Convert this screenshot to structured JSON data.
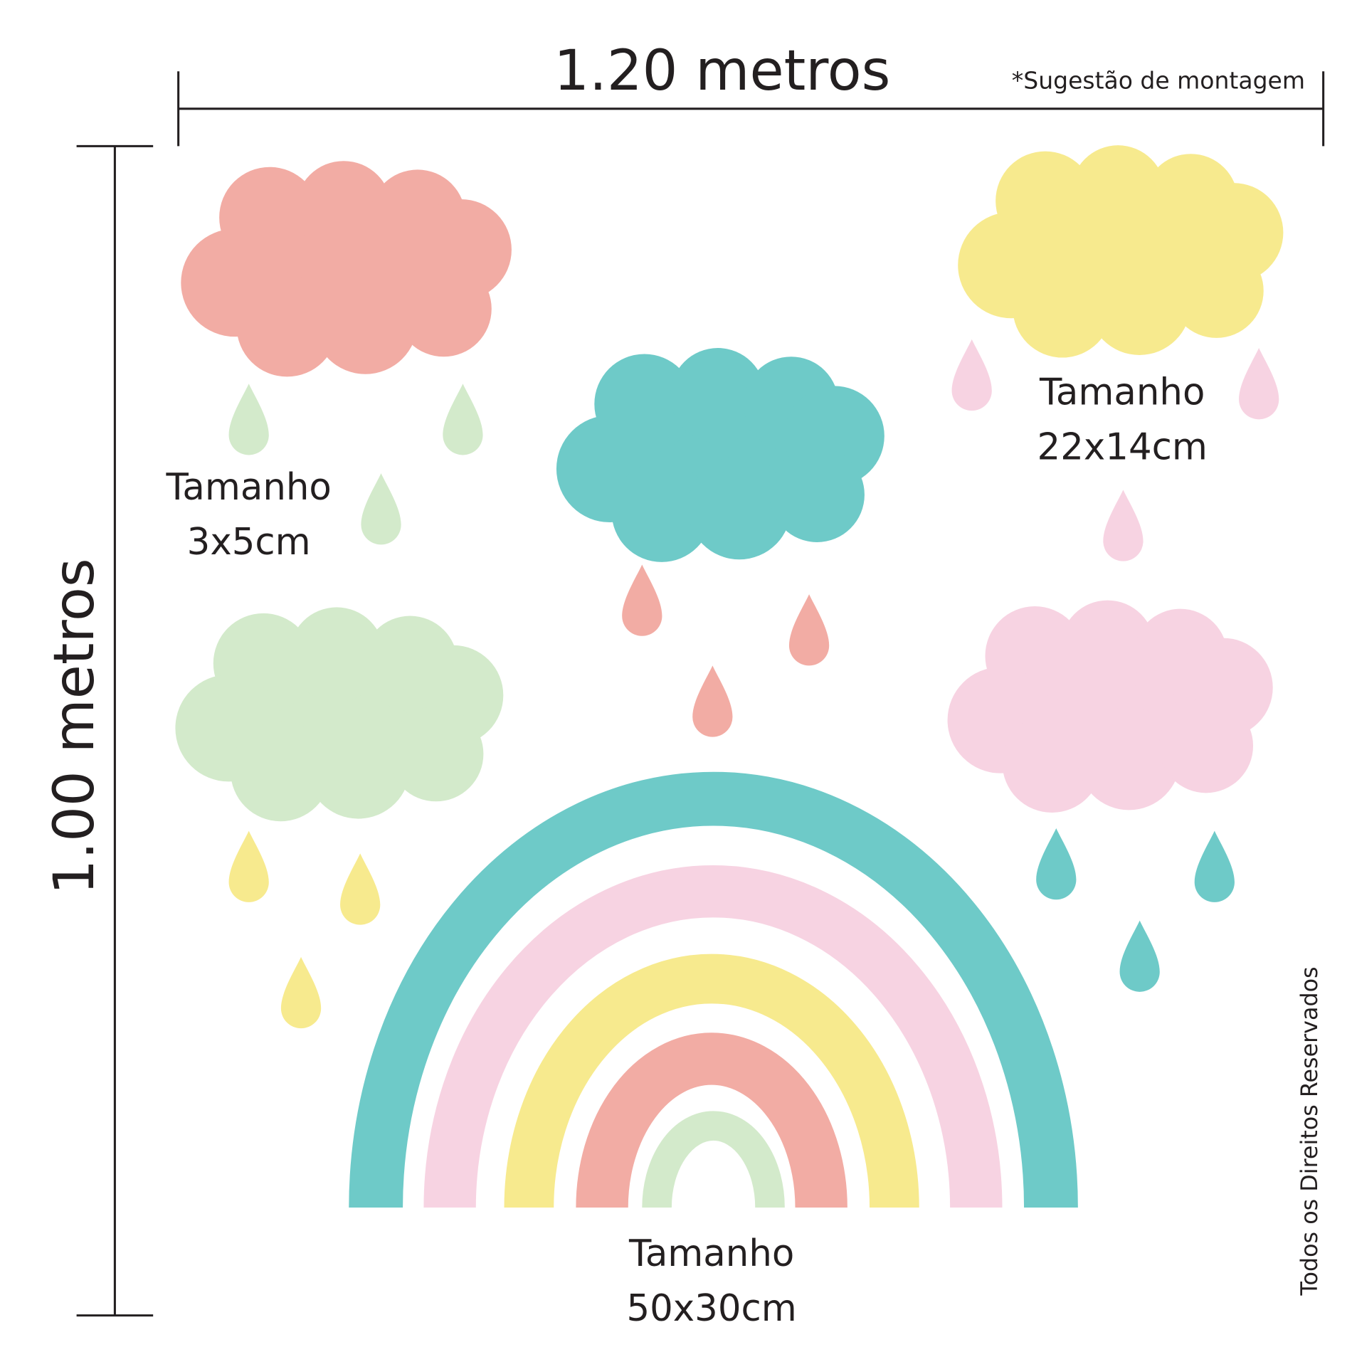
{
  "dimensions": {
    "width": "1.20 metros",
    "height": "1.00 metros",
    "note": "*Sugestão de montagem"
  },
  "labels": [
    {
      "title": "Tamanho",
      "size": "3x5cm"
    },
    {
      "title": "Tamanho",
      "size": "22x14cm"
    },
    {
      "title": "Tamanho",
      "size": "50x30cm"
    }
  ],
  "copyright": "Todos os Direitos Reservados"
}
